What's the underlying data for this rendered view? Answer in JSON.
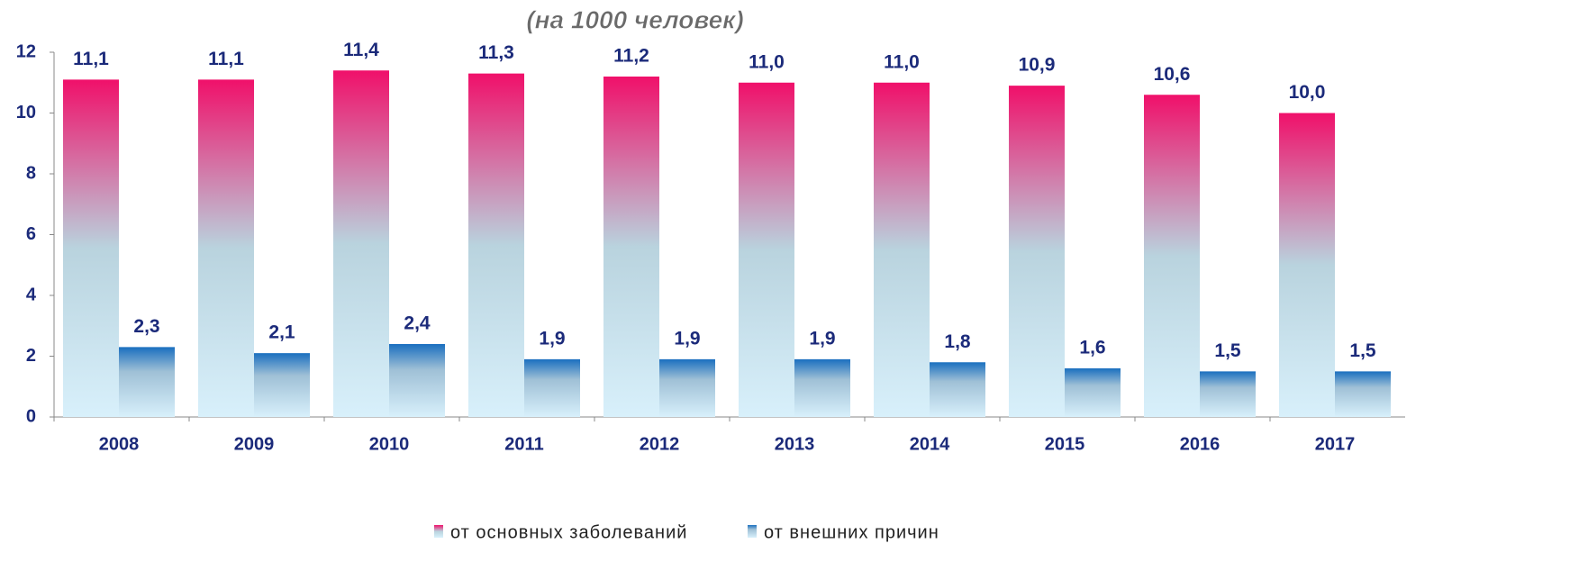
{
  "chart_data": {
    "type": "bar",
    "title": "(на 1000 человек)",
    "categories": [
      "2008",
      "2009",
      "2010",
      "2011",
      "2012",
      "2013",
      "2014",
      "2015",
      "2016",
      "2017"
    ],
    "series": [
      {
        "name": "от основных заболеваний",
        "color": "#f0106a",
        "values": [
          11.1,
          11.1,
          11.4,
          11.3,
          11.2,
          11.0,
          11.0,
          10.9,
          10.6,
          10.0
        ],
        "value_labels": [
          "11,1",
          "11,1",
          "11,4",
          "11,3",
          "11,2",
          "11,0",
          "11,0",
          "10,9",
          "10,6",
          "10,0"
        ]
      },
      {
        "name": "от внешних причин",
        "color": "#1a6fbf",
        "values": [
          2.3,
          2.1,
          2.4,
          1.9,
          1.9,
          1.9,
          1.8,
          1.6,
          1.5,
          1.5
        ],
        "value_labels": [
          "2,3",
          "2,1",
          "2,4",
          "1,9",
          "1,9",
          "1,9",
          "1,8",
          "1,6",
          "1,5",
          "1,5"
        ]
      }
    ],
    "ylim": [
      0,
      12
    ],
    "yticks": [
      0,
      2,
      4,
      6,
      8,
      10,
      12
    ],
    "grid": false
  }
}
